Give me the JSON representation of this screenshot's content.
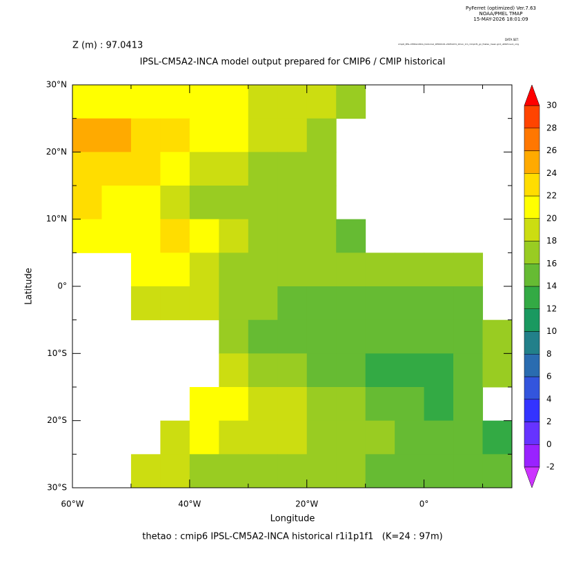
{
  "header": {
    "lines": [
      "PyFerret (optimized) Ver.7.63",
      "NOAA/PMEL TMAP",
      "15-MAY-2026 18:01:09"
    ],
    "dataset_label": "DATA SET:",
    "dataset": "cmip6_IPSL-CM5A2-INCA_historical_18500101-20051231_0mon_1m_r1i1p1f1_gn_thetao_mean.grid_ult625-lev1_orig"
  },
  "chart_data": {
    "type": "heatmap",
    "subtitle": "Z (m) : 97.0413",
    "title": "IPSL-CM5A2-INCA model output prepared for CMIP6 / CMIP historical",
    "x_label": "Longitude",
    "y_label": "Latitude",
    "footer": "thetao : cmip6 IPSL-CM5A2-INCA historical r1i1p1f1   (K=24 : 97m)",
    "xlim": [
      -60,
      15
    ],
    "ylim": [
      -30,
      30
    ],
    "xticks": [
      {
        "value": -60,
        "label": "60°W"
      },
      {
        "value": -40,
        "label": "40°W"
      },
      {
        "value": -20,
        "label": "20°W"
      },
      {
        "value": 0,
        "label": "0°"
      }
    ],
    "xminorticks": [
      -50,
      -30,
      -10,
      10
    ],
    "yticks": [
      {
        "value": 30,
        "label": "30°N"
      },
      {
        "value": 20,
        "label": "20°N"
      },
      {
        "value": 10,
        "label": "10°N"
      },
      {
        "value": 0,
        "label": "0°"
      },
      {
        "value": -10,
        "label": "10°S"
      },
      {
        "value": -20,
        "label": "20°S"
      },
      {
        "value": -30,
        "label": "30°S"
      }
    ],
    "yminorticks": [
      25,
      15,
      5,
      -5,
      -15,
      -25
    ],
    "x": [
      -57.5,
      -52.5,
      -47.5,
      -42.5,
      -37.5,
      -32.5,
      -27.5,
      -22.5,
      -17.5,
      -12.5,
      -7.5,
      -2.5,
      2.5,
      7.5,
      12.5
    ],
    "y": [
      27.5,
      22.5,
      17.5,
      12.5,
      7.5,
      2.5,
      -2.5,
      -7.5,
      -12.5,
      -17.5,
      -22.5,
      -27.5
    ],
    "values": [
      [
        20,
        20,
        20,
        21,
        21,
        20,
        19,
        19,
        18,
        16,
        null,
        null,
        null,
        null,
        null
      ],
      [
        24,
        24,
        23,
        22,
        21,
        20,
        19,
        18,
        16,
        null,
        null,
        null,
        null,
        null,
        null
      ],
      [
        23,
        23,
        22,
        21,
        19,
        18,
        17,
        16,
        16,
        null,
        null,
        null,
        null,
        null,
        null
      ],
      [
        22,
        21,
        20,
        18,
        17,
        17,
        16,
        16,
        16,
        null,
        null,
        null,
        null,
        null,
        null
      ],
      [
        20,
        20,
        20,
        22,
        20,
        18,
        17,
        16,
        16,
        15,
        null,
        null,
        null,
        null,
        null
      ],
      [
        null,
        null,
        21,
        21,
        19,
        17,
        16,
        16,
        16,
        16,
        16,
        16,
        16,
        16,
        null
      ],
      [
        null,
        null,
        19,
        19,
        18,
        17,
        16,
        15,
        15,
        15,
        15,
        15,
        15,
        15,
        null
      ],
      [
        null,
        null,
        null,
        null,
        null,
        17,
        15,
        15,
        14,
        14,
        14,
        14,
        15,
        15,
        16
      ],
      [
        null,
        null,
        null,
        null,
        null,
        19,
        17,
        16,
        15,
        14,
        13,
        13,
        13,
        15,
        16
      ],
      [
        null,
        null,
        null,
        null,
        21,
        20,
        19,
        18,
        17,
        16,
        15,
        14,
        13,
        14,
        null
      ],
      [
        null,
        null,
        null,
        19,
        20,
        19,
        18,
        18,
        17,
        17,
        16,
        15,
        14,
        14,
        13
      ],
      [
        null,
        null,
        18,
        18,
        17,
        17,
        17,
        17,
        16,
        16,
        15,
        15,
        15,
        14,
        14
      ]
    ],
    "levels": [
      -2,
      0,
      2,
      4,
      6,
      8,
      10,
      12,
      14,
      16,
      18,
      20,
      22,
      24,
      26,
      28,
      30
    ],
    "colors": [
      "#cc33ff",
      "#9922ff",
      "#6633ff",
      "#3333ff",
      "#3355dd",
      "#2a6cb0",
      "#22808a",
      "#1a9960",
      "#33aa44",
      "#66bb33",
      "#99cc22",
      "#ccdd11",
      "#ffff00",
      "#ffdd00",
      "#ffaa00",
      "#ff7700",
      "#ff4400",
      "#ff0000"
    ]
  }
}
